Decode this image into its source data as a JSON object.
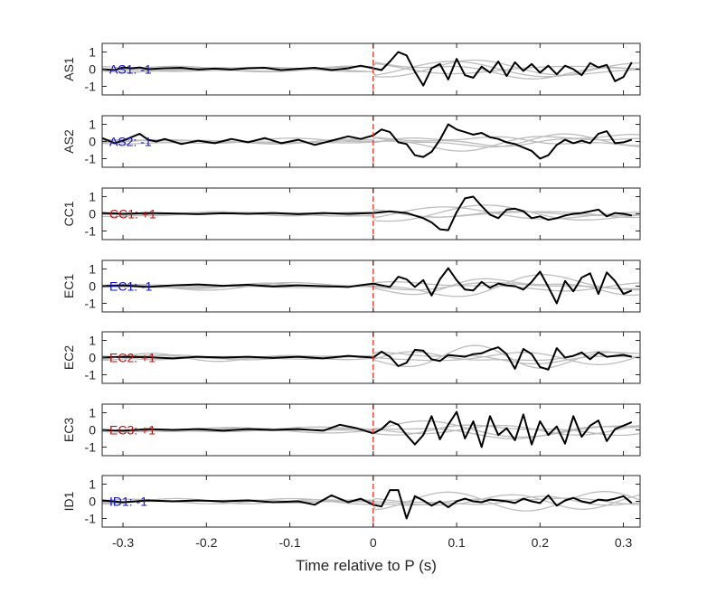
{
  "chart_data": {
    "type": "line",
    "xlabel": "Time relative to P (s)",
    "xlim": [
      -0.325,
      0.32
    ],
    "ylim": [
      -1.5,
      1.5
    ],
    "xticks": [
      -0.3,
      -0.2,
      -0.1,
      0,
      0.1,
      0.2,
      0.3
    ],
    "xtick_labels": [
      "-0.3",
      "-0.2",
      "-0.1",
      "0",
      "0.1",
      "0.2",
      "0.3"
    ],
    "yticks": [
      1,
      0,
      -1
    ],
    "ytick_labels": [
      "1",
      "0",
      "-1"
    ],
    "marker_time": 0,
    "colors": {
      "trace": "#000000",
      "background_traces": "#bdbdbd",
      "marker": "#e8311f",
      "negative_polarity": "#1414b4",
      "positive_polarity": "#b41414"
    },
    "panels": [
      {
        "station": "AS1",
        "label": "AS1: -1",
        "polarity": "negative",
        "trace": {
          "x": [
            -0.325,
            -0.31,
            -0.3,
            -0.29,
            -0.28,
            -0.27,
            -0.25,
            -0.23,
            -0.21,
            -0.19,
            -0.17,
            -0.15,
            -0.13,
            -0.11,
            -0.09,
            -0.07,
            -0.05,
            -0.03,
            -0.015,
            0,
            0.01,
            0.02,
            0.03,
            0.04,
            0.05,
            0.06,
            0.07,
            0.08,
            0.09,
            0.1,
            0.11,
            0.12,
            0.13,
            0.14,
            0.15,
            0.16,
            0.17,
            0.18,
            0.19,
            0.2,
            0.21,
            0.22,
            0.23,
            0.24,
            0.25,
            0.26,
            0.27,
            0.28,
            0.29,
            0.3,
            0.31
          ],
          "y": [
            0.0,
            -0.05,
            0.1,
            0.05,
            0.1,
            0.0,
            0.05,
            0.08,
            -0.02,
            0.03,
            -0.02,
            0.05,
            0.08,
            -0.05,
            0.02,
            0.08,
            -0.05,
            0.05,
            0.2,
            0.05,
            -0.05,
            0.45,
            1.0,
            0.8,
            -0.15,
            -0.95,
            0.05,
            0.3,
            -0.6,
            0.6,
            -0.35,
            -0.5,
            0.15,
            -0.2,
            0.45,
            -0.4,
            0.4,
            -0.1,
            0.3,
            -0.2,
            0.2,
            -0.3,
            0.2,
            0.0,
            -0.35,
            0.35,
            0.1,
            0.25,
            -0.7,
            -0.45,
            0.4
          ]
        }
      },
      {
        "station": "AS2",
        "label": "AS2: -1",
        "polarity": "negative",
        "trace": {
          "x": [
            -0.325,
            -0.31,
            -0.3,
            -0.28,
            -0.27,
            -0.26,
            -0.25,
            -0.23,
            -0.21,
            -0.19,
            -0.17,
            -0.15,
            -0.13,
            -0.11,
            -0.09,
            -0.07,
            -0.05,
            -0.03,
            -0.015,
            0,
            0.01,
            0.02,
            0.03,
            0.04,
            0.05,
            0.06,
            0.07,
            0.08,
            0.09,
            0.1,
            0.11,
            0.12,
            0.13,
            0.14,
            0.15,
            0.16,
            0.17,
            0.18,
            0.19,
            0.2,
            0.21,
            0.22,
            0.23,
            0.24,
            0.25,
            0.26,
            0.27,
            0.28,
            0.29,
            0.3,
            0.31
          ],
          "y": [
            0.2,
            -0.1,
            0.05,
            0.45,
            0.1,
            0.0,
            0.15,
            -0.15,
            0.05,
            -0.1,
            0.15,
            -0.05,
            0.2,
            -0.1,
            0.1,
            -0.2,
            0.05,
            0.3,
            0.15,
            0.35,
            0.7,
            0.55,
            -0.05,
            -0.15,
            -0.8,
            -0.9,
            -0.6,
            0.1,
            1.0,
            0.7,
            0.55,
            0.4,
            0.5,
            0.25,
            0.15,
            -0.05,
            -0.15,
            -0.35,
            -0.55,
            -1.0,
            -0.8,
            -0.2,
            0.1,
            -0.1,
            0.05,
            -0.1,
            0.45,
            0.6,
            -0.1,
            -0.05,
            0.1
          ]
        }
      },
      {
        "station": "CC1",
        "label": "CC1: +1",
        "polarity": "positive",
        "trace": {
          "x": [
            -0.325,
            -0.3,
            -0.27,
            -0.24,
            -0.21,
            -0.18,
            -0.15,
            -0.12,
            -0.09,
            -0.06,
            -0.03,
            0,
            0.02,
            0.04,
            0.06,
            0.07,
            0.08,
            0.09,
            0.1,
            0.11,
            0.12,
            0.13,
            0.14,
            0.15,
            0.16,
            0.17,
            0.18,
            0.19,
            0.2,
            0.21,
            0.22,
            0.23,
            0.24,
            0.25,
            0.26,
            0.27,
            0.28,
            0.29,
            0.3,
            0.31
          ],
          "y": [
            0.05,
            0.0,
            0.05,
            0.02,
            -0.02,
            0.03,
            0.0,
            0.05,
            -0.02,
            0.05,
            0.0,
            0.05,
            0.15,
            0.05,
            -0.25,
            -0.5,
            -0.9,
            -0.95,
            0.1,
            0.9,
            1.0,
            0.45,
            -0.05,
            -0.25,
            0.25,
            0.3,
            0.15,
            -0.25,
            -0.15,
            -0.35,
            -0.25,
            -0.1,
            0.0,
            0.05,
            0.15,
            0.25,
            -0.15,
            0.05,
            0.0,
            -0.1
          ]
        }
      },
      {
        "station": "EC1",
        "label": "EC1: -1",
        "polarity": "negative",
        "trace": {
          "x": [
            -0.325,
            -0.3,
            -0.27,
            -0.24,
            -0.21,
            -0.18,
            -0.15,
            -0.12,
            -0.09,
            -0.06,
            -0.03,
            0,
            0.01,
            0.02,
            0.03,
            0.04,
            0.05,
            0.06,
            0.07,
            0.08,
            0.09,
            0.1,
            0.11,
            0.12,
            0.13,
            0.14,
            0.15,
            0.16,
            0.17,
            0.18,
            0.19,
            0.2,
            0.21,
            0.22,
            0.23,
            0.24,
            0.25,
            0.26,
            0.27,
            0.28,
            0.29,
            0.3,
            0.31
          ],
          "y": [
            0.0,
            0.05,
            -0.05,
            0.05,
            0.1,
            0.02,
            0.08,
            -0.02,
            0.05,
            0.0,
            -0.05,
            0.15,
            0.05,
            -0.05,
            0.55,
            0.4,
            -0.05,
            0.35,
            -0.55,
            0.4,
            1.05,
            0.35,
            -0.2,
            -0.25,
            0.25,
            -0.1,
            0.15,
            0.05,
            0.0,
            -0.2,
            0.25,
            0.85,
            -0.05,
            -1.0,
            0.3,
            -0.3,
            0.5,
            0.75,
            -0.45,
            0.8,
            0.3,
            -0.45,
            -0.25
          ]
        }
      },
      {
        "station": "EC2",
        "label": "EC2: +1",
        "polarity": "positive",
        "trace": {
          "x": [
            -0.325,
            -0.3,
            -0.27,
            -0.24,
            -0.21,
            -0.18,
            -0.15,
            -0.12,
            -0.09,
            -0.06,
            -0.03,
            0,
            0.01,
            0.02,
            0.03,
            0.04,
            0.05,
            0.06,
            0.07,
            0.08,
            0.09,
            0.1,
            0.11,
            0.12,
            0.13,
            0.14,
            0.15,
            0.16,
            0.17,
            0.18,
            0.19,
            0.2,
            0.21,
            0.22,
            0.23,
            0.24,
            0.25,
            0.26,
            0.27,
            0.28,
            0.29,
            0.3,
            0.31
          ],
          "y": [
            0.0,
            0.05,
            0.02,
            -0.05,
            0.05,
            0.0,
            0.05,
            -0.02,
            0.05,
            -0.05,
            0.1,
            0.0,
            0.35,
            0.05,
            -0.5,
            -0.3,
            0.45,
            0.4,
            -0.1,
            -0.2,
            0.15,
            0.1,
            0.05,
            0.2,
            0.25,
            0.45,
            0.6,
            0.2,
            -0.65,
            0.5,
            0.2,
            -0.55,
            -0.7,
            0.55,
            0.0,
            0.1,
            0.3,
            -0.1,
            0.3,
            0.05,
            0.1,
            0.15,
            0.05
          ]
        }
      },
      {
        "station": "EC3",
        "label": "EC3: +1",
        "polarity": "positive",
        "trace": {
          "x": [
            -0.325,
            -0.3,
            -0.27,
            -0.24,
            -0.21,
            -0.18,
            -0.15,
            -0.12,
            -0.09,
            -0.06,
            -0.04,
            -0.02,
            0,
            0.01,
            0.02,
            0.03,
            0.04,
            0.05,
            0.06,
            0.07,
            0.08,
            0.09,
            0.1,
            0.11,
            0.12,
            0.13,
            0.14,
            0.15,
            0.16,
            0.17,
            0.18,
            0.19,
            0.2,
            0.21,
            0.22,
            0.23,
            0.24,
            0.25,
            0.26,
            0.27,
            0.28,
            0.29,
            0.3,
            0.31
          ],
          "y": [
            0.0,
            -0.05,
            0.05,
            0.0,
            0.05,
            -0.05,
            0.05,
            0.0,
            0.05,
            -0.05,
            0.3,
            0.1,
            -0.2,
            0.05,
            0.5,
            0.3,
            -0.3,
            -0.85,
            -0.3,
            0.8,
            -0.55,
            0.3,
            1.05,
            -0.5,
            0.5,
            -1.0,
            0.8,
            -0.3,
            0.1,
            -0.6,
            0.9,
            -0.85,
            0.5,
            -0.3,
            0.2,
            -0.8,
            0.8,
            -0.4,
            0.25,
            0.55,
            -0.65,
            0.05,
            0.25,
            0.45
          ]
        }
      },
      {
        "station": "ID1",
        "label": "ID1: -1",
        "polarity": "negative",
        "trace": {
          "x": [
            -0.325,
            -0.3,
            -0.27,
            -0.24,
            -0.21,
            -0.18,
            -0.15,
            -0.12,
            -0.09,
            -0.07,
            -0.05,
            -0.03,
            -0.015,
            0,
            0.01,
            0.02,
            0.03,
            0.04,
            0.05,
            0.06,
            0.07,
            0.08,
            0.09,
            0.1,
            0.11,
            0.12,
            0.13,
            0.14,
            0.15,
            0.16,
            0.17,
            0.18,
            0.19,
            0.2,
            0.21,
            0.22,
            0.23,
            0.24,
            0.25,
            0.26,
            0.27,
            0.28,
            0.29,
            0.3,
            0.31
          ],
          "y": [
            0.05,
            -0.05,
            0.05,
            0.0,
            0.05,
            0.0,
            0.05,
            -0.05,
            0.0,
            -0.2,
            0.35,
            -0.05,
            0.15,
            -0.2,
            -0.3,
            0.65,
            0.65,
            -1.0,
            0.3,
            0.05,
            -0.25,
            0.0,
            -0.35,
            0.0,
            0.15,
            0.0,
            -0.05,
            0.1,
            0.05,
            0.0,
            -0.1,
            0.15,
            0.0,
            -0.1,
            0.35,
            -0.25,
            0.05,
            0.2,
            0.0,
            -0.1,
            0.1,
            0.05,
            0.15,
            0.3,
            -0.1
          ]
        }
      }
    ]
  }
}
